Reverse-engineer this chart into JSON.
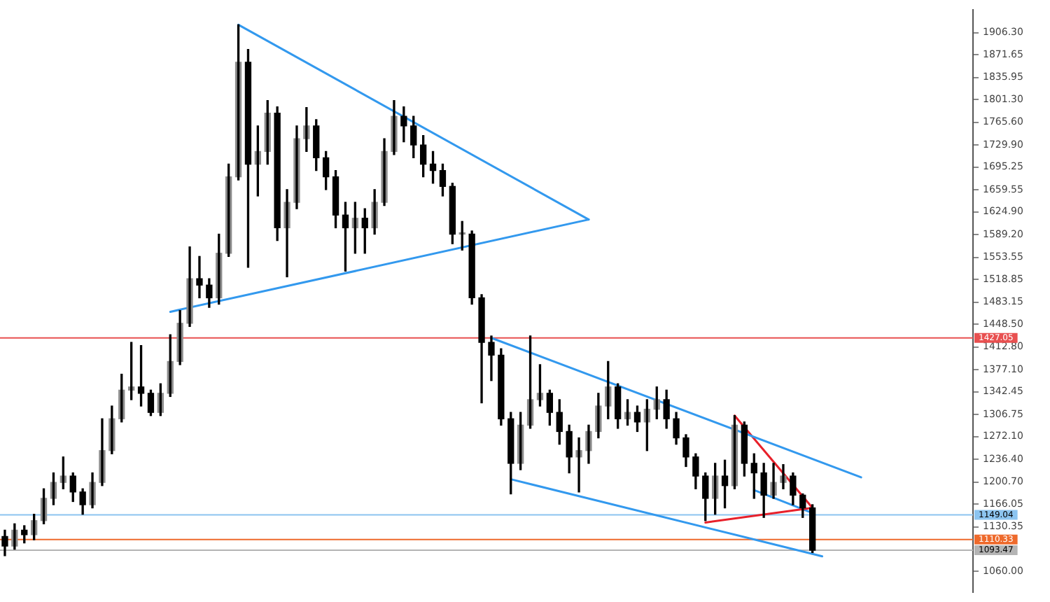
{
  "chart_data": {
    "type": "candlestick",
    "tick_labels": "y",
    "categories": [
      null,
      null,
      null,
      null,
      null,
      null,
      null,
      null,
      null,
      null,
      null,
      null,
      null,
      null,
      null,
      null,
      null,
      null,
      null,
      null,
      null,
      null,
      null,
      null,
      null,
      null,
      null,
      null,
      null,
      null,
      null,
      null,
      null,
      null,
      null,
      null,
      null,
      null,
      null,
      null,
      null,
      null,
      null,
      null,
      null,
      null,
      null,
      null,
      null,
      null,
      null,
      null,
      null,
      null,
      null,
      null,
      null,
      null,
      null,
      null,
      null,
      null,
      null,
      null,
      null,
      null,
      null,
      null,
      null,
      null,
      null,
      null,
      null,
      null,
      null,
      null,
      null,
      null,
      null,
      null,
      null,
      null,
      null,
      null,
      null,
      null,
      null,
      null,
      null,
      null,
      null,
      null,
      null,
      null,
      null,
      null,
      null,
      null,
      null,
      null
    ],
    "ohlc": [
      [
        1115,
        1125,
        1085,
        1100
      ],
      [
        1100,
        1135,
        1095,
        1125
      ],
      [
        1125,
        1132,
        1105,
        1118
      ],
      [
        1118,
        1150,
        1110,
        1140
      ],
      [
        1140,
        1190,
        1135,
        1175
      ],
      [
        1175,
        1215,
        1165,
        1200
      ],
      [
        1200,
        1240,
        1190,
        1210
      ],
      [
        1210,
        1215,
        1170,
        1185
      ],
      [
        1185,
        1190,
        1150,
        1165
      ],
      [
        1165,
        1215,
        1160,
        1200
      ],
      [
        1200,
        1300,
        1195,
        1250
      ],
      [
        1250,
        1320,
        1245,
        1300
      ],
      [
        1300,
        1370,
        1295,
        1345
      ],
      [
        1345,
        1420,
        1330,
        1350
      ],
      [
        1350,
        1415,
        1320,
        1340
      ],
      [
        1340,
        1345,
        1305,
        1310
      ],
      [
        1310,
        1355,
        1305,
        1340
      ],
      [
        1340,
        1432,
        1335,
        1390
      ],
      [
        1390,
        1470,
        1385,
        1450
      ],
      [
        1450,
        1570,
        1445,
        1520
      ],
      [
        1520,
        1555,
        1490,
        1510
      ],
      [
        1510,
        1520,
        1475,
        1490
      ],
      [
        1490,
        1590,
        1480,
        1560
      ],
      [
        1560,
        1700,
        1555,
        1680
      ],
      [
        1680,
        1919,
        1675,
        1860
      ],
      [
        1860,
        1880,
        1538,
        1700
      ],
      [
        1700,
        1760,
        1650,
        1720
      ],
      [
        1720,
        1800,
        1700,
        1780
      ],
      [
        1780,
        1790,
        1580,
        1600
      ],
      [
        1600,
        1660,
        1523,
        1640
      ],
      [
        1640,
        1760,
        1630,
        1740
      ],
      [
        1740,
        1789,
        1720,
        1760
      ],
      [
        1760,
        1770,
        1690,
        1710
      ],
      [
        1710,
        1720,
        1660,
        1680
      ],
      [
        1680,
        1690,
        1600,
        1620
      ],
      [
        1620,
        1640,
        1532,
        1600
      ],
      [
        1600,
        1640,
        1560,
        1615
      ],
      [
        1615,
        1630,
        1560,
        1600
      ],
      [
        1600,
        1660,
        1590,
        1640
      ],
      [
        1640,
        1740,
        1635,
        1720
      ],
      [
        1720,
        1800,
        1715,
        1775
      ],
      [
        1775,
        1790,
        1735,
        1760
      ],
      [
        1760,
        1775,
        1710,
        1730
      ],
      [
        1730,
        1745,
        1680,
        1700
      ],
      [
        1700,
        1720,
        1670,
        1690
      ],
      [
        1690,
        1700,
        1650,
        1665
      ],
      [
        1665,
        1670,
        1575,
        1590
      ],
      [
        1590,
        1610,
        1565,
        1590
      ],
      [
        1590,
        1595,
        1480,
        1490
      ],
      [
        1490,
        1495,
        1325,
        1420
      ],
      [
        1420,
        1430,
        1360,
        1400
      ],
      [
        1400,
        1410,
        1290,
        1300
      ],
      [
        1300,
        1310,
        1182,
        1230
      ],
      [
        1230,
        1310,
        1220,
        1290
      ],
      [
        1290,
        1430,
        1285,
        1330
      ],
      [
        1330,
        1385,
        1320,
        1340
      ],
      [
        1340,
        1345,
        1290,
        1310
      ],
      [
        1310,
        1330,
        1260,
        1280
      ],
      [
        1280,
        1290,
        1215,
        1240
      ],
      [
        1240,
        1270,
        1185,
        1250
      ],
      [
        1250,
        1290,
        1230,
        1280
      ],
      [
        1280,
        1340,
        1270,
        1320
      ],
      [
        1320,
        1390,
        1300,
        1350
      ],
      [
        1350,
        1355,
        1285,
        1300
      ],
      [
        1300,
        1330,
        1290,
        1310
      ],
      [
        1310,
        1320,
        1280,
        1295
      ],
      [
        1295,
        1330,
        1250,
        1315
      ],
      [
        1315,
        1350,
        1300,
        1330
      ],
      [
        1330,
        1345,
        1285,
        1300
      ],
      [
        1300,
        1310,
        1260,
        1270
      ],
      [
        1270,
        1275,
        1225,
        1240
      ],
      [
        1240,
        1245,
        1190,
        1210
      ],
      [
        1210,
        1215,
        1140,
        1175
      ],
      [
        1175,
        1230,
        1150,
        1210
      ],
      [
        1210,
        1235,
        1160,
        1195
      ],
      [
        1195,
        1305,
        1190,
        1290
      ],
      [
        1290,
        1295,
        1210,
        1230
      ],
      [
        1230,
        1245,
        1175,
        1215
      ],
      [
        1215,
        1230,
        1145,
        1180
      ],
      [
        1180,
        1230,
        1175,
        1200
      ],
      [
        1200,
        1228,
        1190,
        1210
      ],
      [
        1210,
        1215,
        1165,
        1180
      ],
      [
        1180,
        1182,
        1145,
        1160
      ],
      [
        1160,
        1165,
        1090,
        1093.47
      ],
      null,
      null,
      null,
      null,
      null,
      null,
      null,
      null,
      null,
      null,
      null,
      null,
      null,
      null,
      null,
      null
    ],
    "series": [
      {
        "type": "line",
        "color": "#3399ee",
        "values": [
          null,
          null,
          null,
          null,
          null,
          null,
          null,
          null,
          null,
          null,
          null,
          null,
          null,
          null,
          null,
          null,
          null,
          null,
          null,
          null,
          null,
          null,
          null,
          null,
          1919,
          null,
          null,
          null,
          null,
          null,
          null,
          null,
          null,
          null,
          null,
          null,
          null,
          null,
          null,
          null,
          null,
          null,
          null,
          null,
          null,
          null,
          null,
          null,
          null,
          null,
          null,
          null,
          null,
          null,
          null,
          null,
          null,
          null,
          null,
          null,
          1613,
          null,
          null,
          null,
          null,
          null,
          null,
          null,
          null,
          null,
          null,
          null,
          null,
          null,
          null,
          null,
          null,
          null,
          null,
          null,
          null,
          null,
          null,
          null,
          null,
          null,
          null,
          null,
          null,
          null,
          null,
          null,
          null,
          null,
          null,
          null,
          null,
          null,
          null,
          null
        ]
      },
      {
        "type": "line",
        "color": "#3399ee",
        "values": [
          null,
          null,
          null,
          null,
          null,
          null,
          null,
          null,
          null,
          null,
          null,
          null,
          null,
          null,
          null,
          null,
          null,
          1468,
          null,
          null,
          null,
          null,
          null,
          null,
          null,
          null,
          null,
          null,
          null,
          null,
          null,
          null,
          null,
          null,
          null,
          null,
          null,
          null,
          null,
          null,
          null,
          null,
          null,
          null,
          null,
          null,
          null,
          null,
          null,
          null,
          null,
          null,
          null,
          null,
          null,
          null,
          null,
          null,
          null,
          null,
          1613,
          null,
          null,
          null,
          null,
          null,
          null,
          null,
          null,
          null,
          null,
          null,
          null,
          null,
          null,
          null,
          null,
          null,
          null,
          null,
          null,
          null,
          null,
          null,
          null,
          null,
          null,
          null,
          null,
          null,
          null,
          null,
          null,
          null,
          null,
          null,
          null,
          null,
          null,
          null
        ]
      },
      {
        "type": "line",
        "color": "#3399ee",
        "values": [
          null,
          null,
          null,
          null,
          null,
          null,
          null,
          null,
          null,
          null,
          null,
          null,
          null,
          null,
          null,
          null,
          null,
          null,
          null,
          null,
          null,
          null,
          null,
          null,
          null,
          null,
          null,
          null,
          null,
          null,
          null,
          null,
          null,
          null,
          null,
          null,
          null,
          null,
          null,
          null,
          null,
          null,
          null,
          null,
          null,
          null,
          null,
          null,
          null,
          null,
          1427,
          null,
          null,
          null,
          null,
          null,
          null,
          null,
          null,
          null,
          null,
          null,
          null,
          null,
          null,
          null,
          null,
          null,
          null,
          null,
          null,
          null,
          null,
          null,
          null,
          null,
          null,
          null,
          null,
          null,
          null,
          null,
          null,
          null,
          null,
          null,
          null,
          null,
          1208,
          null,
          null,
          null,
          null,
          null,
          null,
          null,
          null,
          null,
          null,
          null
        ]
      },
      {
        "type": "line",
        "color": "#3399ee",
        "values": [
          null,
          null,
          null,
          null,
          null,
          null,
          null,
          null,
          null,
          null,
          null,
          null,
          null,
          null,
          null,
          null,
          null,
          null,
          null,
          null,
          null,
          null,
          null,
          null,
          null,
          null,
          null,
          null,
          null,
          null,
          null,
          null,
          null,
          null,
          null,
          null,
          null,
          null,
          null,
          null,
          null,
          null,
          null,
          null,
          null,
          null,
          null,
          null,
          null,
          null,
          null,
          null,
          1205,
          null,
          null,
          null,
          null,
          null,
          null,
          null,
          null,
          null,
          null,
          null,
          null,
          null,
          null,
          null,
          null,
          null,
          null,
          null,
          null,
          null,
          null,
          null,
          null,
          null,
          null,
          null,
          null,
          null,
          null,
          null,
          1084,
          null,
          null,
          null,
          null,
          null,
          null,
          null,
          null,
          null,
          null,
          null,
          null,
          null,
          null,
          null
        ]
      },
      {
        "type": "line",
        "color": "#e8202a",
        "values": [
          null,
          null,
          null,
          null,
          null,
          null,
          null,
          null,
          null,
          null,
          null,
          null,
          null,
          null,
          null,
          null,
          null,
          null,
          null,
          null,
          null,
          null,
          null,
          null,
          null,
          null,
          null,
          null,
          null,
          null,
          null,
          null,
          null,
          null,
          null,
          null,
          null,
          null,
          null,
          null,
          null,
          null,
          null,
          null,
          null,
          null,
          null,
          null,
          null,
          null,
          null,
          null,
          null,
          null,
          null,
          null,
          null,
          null,
          null,
          null,
          null,
          null,
          null,
          null,
          null,
          null,
          null,
          null,
          null,
          null,
          null,
          null,
          null,
          null,
          null,
          1305,
          null,
          null,
          null,
          null,
          null,
          null,
          null,
          1160,
          null,
          null,
          null,
          null,
          null,
          null,
          null,
          null,
          null,
          null,
          null,
          null,
          null,
          null,
          null,
          null
        ]
      },
      {
        "type": "line",
        "color": "#e8202a",
        "values": [
          null,
          null,
          null,
          null,
          null,
          null,
          null,
          null,
          null,
          null,
          null,
          null,
          null,
          null,
          null,
          null,
          null,
          null,
          null,
          null,
          null,
          null,
          null,
          null,
          null,
          null,
          null,
          null,
          null,
          null,
          null,
          null,
          null,
          null,
          null,
          null,
          null,
          null,
          null,
          null,
          null,
          null,
          null,
          null,
          null,
          null,
          null,
          null,
          null,
          null,
          null,
          null,
          null,
          null,
          null,
          null,
          null,
          null,
          null,
          null,
          null,
          null,
          null,
          null,
          null,
          null,
          null,
          null,
          null,
          null,
          null,
          null,
          1137,
          null,
          null,
          null,
          null,
          null,
          null,
          null,
          null,
          null,
          null,
          1160,
          null,
          null,
          null,
          null,
          null,
          null,
          null,
          null,
          null,
          null,
          null,
          null,
          null,
          null,
          null,
          null
        ]
      },
      {
        "type": "line",
        "color": "#3399ee",
        "values": [
          null,
          null,
          null,
          null,
          null,
          null,
          null,
          null,
          null,
          null,
          null,
          null,
          null,
          null,
          null,
          null,
          null,
          null,
          null,
          null,
          null,
          null,
          null,
          null,
          null,
          null,
          null,
          null,
          null,
          null,
          null,
          null,
          null,
          null,
          null,
          null,
          null,
          null,
          null,
          null,
          null,
          null,
          null,
          null,
          null,
          null,
          null,
          null,
          null,
          null,
          null,
          null,
          null,
          null,
          null,
          null,
          null,
          null,
          null,
          null,
          null,
          null,
          null,
          null,
          null,
          null,
          null,
          null,
          null,
          null,
          null,
          null,
          null,
          null,
          null,
          null,
          null,
          1188,
          null,
          null,
          null,
          null,
          null,
          1152,
          null,
          null,
          null,
          null,
          null,
          null,
          null,
          null,
          null,
          null,
          null,
          null,
          null,
          null,
          null,
          null
        ]
      }
    ],
    "ylim": [
      1028,
      1942
    ],
    "yticks": [
      {
        "value": 1906.3,
        "label": "1906.30"
      },
      1871.65,
      1835.95,
      {
        "value": 1801.3,
        "label": "1801.30"
      },
      {
        "value": 1765.6,
        "label": "1765.60"
      },
      {
        "value": 1729.9,
        "label": "1729.90"
      },
      1695.25,
      1659.55,
      {
        "value": 1624.9,
        "label": "1624.90"
      },
      {
        "value": 1589.2,
        "label": "1589.20"
      },
      1553.55,
      1518.85,
      1483.15,
      {
        "value": 1448.5,
        "label": "1448.50"
      },
      {
        "value": 1412.8,
        "label": "1412.80"
      },
      {
        "value": 1377.1,
        "label": "1377.10"
      },
      1342.45,
      1306.75,
      {
        "value": 1272.1,
        "label": "1272.10"
      },
      {
        "value": 1236.4,
        "label": "1236.40"
      },
      {
        "value": 1200.7,
        "label": "1200.70"
      },
      1166.05,
      1130.35,
      {
        "value": 1060,
        "label": "1060.00"
      }
    ],
    "ref_lines": [
      {
        "axis": "y",
        "value": 1427.05,
        "label": "1427.05",
        "color": "#e85050"
      },
      {
        "axis": "y",
        "value": 1149.04,
        "label": "1149.04",
        "color": "#8cc4f0"
      },
      {
        "axis": "y",
        "value": 1110.33,
        "label": "1110.33",
        "color": "#ee6a2c"
      },
      {
        "axis": "y",
        "value": 1093.47,
        "label": "1093.47",
        "color": "#b4b4b4"
      }
    ]
  }
}
